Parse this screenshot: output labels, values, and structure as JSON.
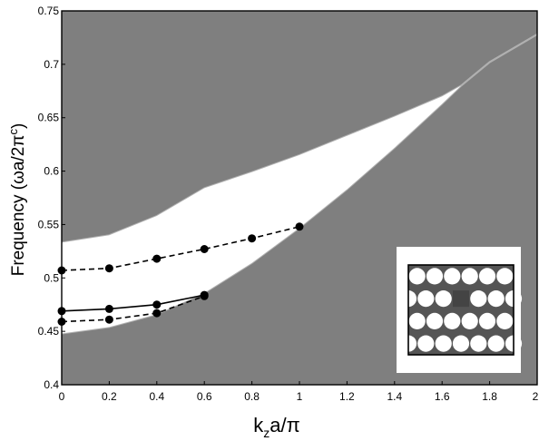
{
  "chart_data": {
    "type": "line",
    "xlabel": {
      "base": "k",
      "sub": "z",
      "rest": "a/π"
    },
    "ylabel": {
      "main": "Frequency (ωa/2π",
      "sup": "c",
      "close": ")"
    },
    "xlim": [
      0,
      2
    ],
    "ylim": [
      0.4,
      0.75
    ],
    "x_ticks": [
      "0",
      "0.2",
      "0.4",
      "0.6",
      "0.8",
      "1",
      "1.2",
      "1.4",
      "1.6",
      "1.8",
      "2"
    ],
    "y_ticks": [
      "0.4",
      "0.45",
      "0.5",
      "0.55",
      "0.6",
      "0.65",
      "0.7",
      "0.75"
    ],
    "x_tick_values": [
      0,
      0.2,
      0.4,
      0.6,
      0.8,
      1,
      1.2,
      1.4,
      1.6,
      1.8,
      2
    ],
    "y_tick_values": [
      0.4,
      0.45,
      0.5,
      0.55,
      0.6,
      0.65,
      0.7,
      0.75
    ],
    "upper_band_edge": {
      "x": [
        0,
        0.2,
        0.4,
        0.6,
        0.8,
        1.0,
        1.2,
        1.4,
        1.6,
        1.68,
        1.8,
        2.0
      ],
      "y": [
        0.533,
        0.54,
        0.558,
        0.584,
        0.599,
        0.615,
        0.633,
        0.651,
        0.67,
        0.68,
        0.702,
        0.728
      ]
    },
    "lower_band_edge": {
      "x": [
        0,
        0.2,
        0.4,
        0.6,
        0.8,
        1.0,
        1.2,
        1.4,
        1.6,
        1.68,
        1.8,
        2.0
      ],
      "y": [
        0.448,
        0.454,
        0.466,
        0.486,
        0.514,
        0.547,
        0.583,
        0.622,
        0.663,
        0.68,
        0.702,
        0.728
      ]
    },
    "series": [
      {
        "style": "dashed",
        "x": [
          0,
          0.2,
          0.4,
          0.6,
          0.8,
          1.0
        ],
        "y": [
          0.507,
          0.509,
          0.518,
          0.527,
          0.537,
          0.548
        ]
      },
      {
        "style": "solid",
        "x": [
          0,
          0.2,
          0.4,
          0.6
        ],
        "y": [
          0.469,
          0.471,
          0.475,
          0.484
        ]
      },
      {
        "style": "dashed",
        "x": [
          0,
          0.2,
          0.4,
          0.6
        ],
        "y": [
          0.459,
          0.461,
          0.467,
          0.483
        ]
      }
    ],
    "colors": {
      "band": "#7f7f7f",
      "band_edge": "#b0b0b0",
      "gap": "#ffffff",
      "line": "#000000",
      "defect": "#555555"
    },
    "grid": false
  }
}
